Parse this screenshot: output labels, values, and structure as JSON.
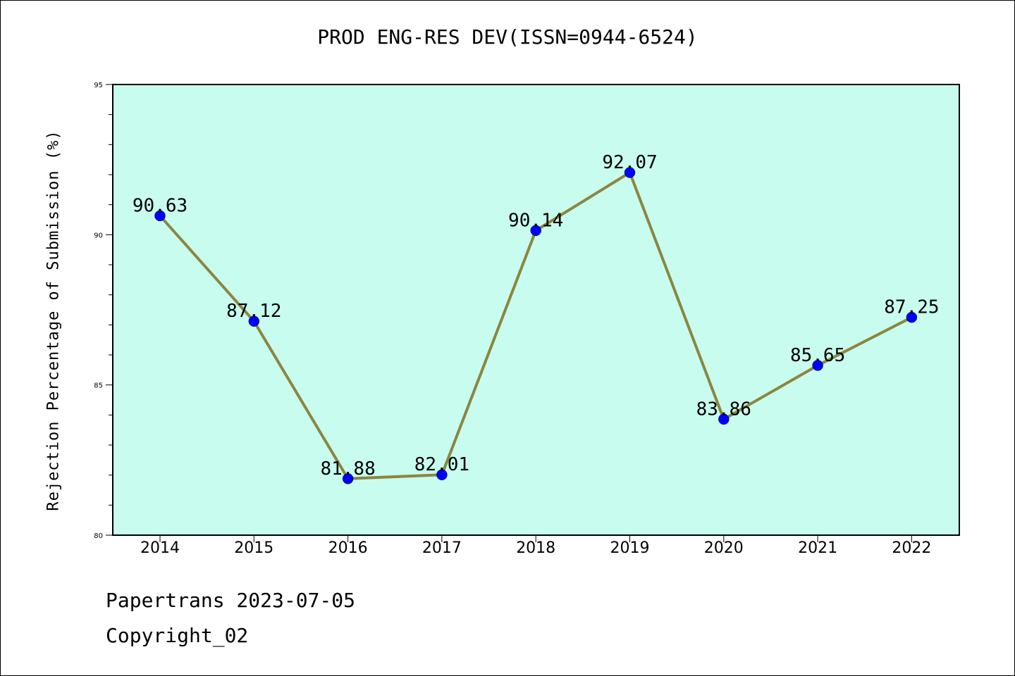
{
  "chart_data": {
    "type": "line",
    "title": "PROD ENG-RES DEV(ISSN=0944-6524)",
    "xlabel": "",
    "ylabel": "Rejection Percentage of Submission (%)",
    "categories": [
      "2014",
      "2015",
      "2016",
      "2017",
      "2018",
      "2019",
      "2020",
      "2021",
      "2022"
    ],
    "series": [
      {
        "values": [
          90.63,
          87.12,
          81.88,
          82.01,
          90.14,
          92.07,
          83.86,
          85.65,
          87.25
        ],
        "labels": [
          "90.63",
          "87.12",
          "81.88",
          "82.01",
          "90.14",
          "92.07",
          "83.86",
          "85.65",
          "87.25"
        ],
        "line_color": "#8b8640",
        "marker_color": "#0000ff"
      }
    ],
    "ylim": [
      80,
      95
    ],
    "yticks": [
      {
        "value": 80,
        "label": "80"
      },
      {
        "value": 85,
        "label": "85"
      },
      {
        "value": 90,
        "label": "90"
      },
      {
        "value": 95,
        "label": "95"
      }
    ],
    "grid": false,
    "legend": "none",
    "plot_background": "#c8fcee"
  },
  "footer": {
    "date_line": "Papertrans 2023-07-05",
    "copyright_line": "Copyright_02"
  }
}
